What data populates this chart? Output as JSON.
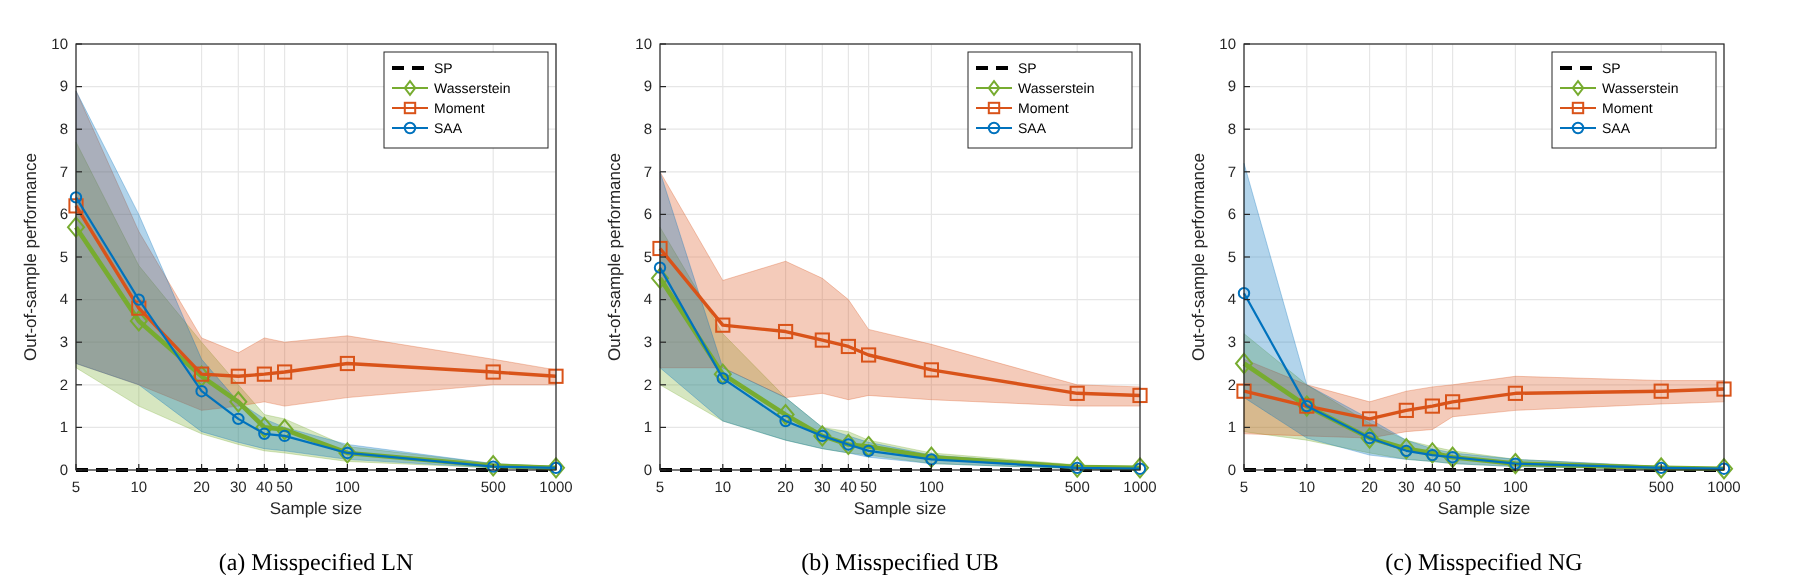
{
  "chart_data": [
    {
      "type": "line",
      "title": "(a) Misspecified LN",
      "xlabel": "Sample size",
      "ylabel": "Out-of-sample performance",
      "log": "x",
      "grid": true,
      "legend": "top right",
      "xlim": [
        5,
        1000
      ],
      "xticks": [
        5,
        10,
        20,
        30,
        40,
        50,
        100,
        500,
        1000
      ],
      "ylim": [
        0,
        10
      ],
      "yticks": [
        0,
        1,
        2,
        3,
        4,
        5,
        6,
        7,
        8,
        9,
        10
      ],
      "x": [
        5,
        10,
        20,
        30,
        40,
        50,
        100,
        500,
        1000
      ],
      "series": [
        {
          "name": "SP",
          "color": "#000000",
          "marker": "none",
          "line_style": "dashed",
          "values": [
            0,
            0,
            0,
            0,
            0,
            0,
            0,
            0,
            0
          ]
        },
        {
          "name": "Wasserstein",
          "color": "#77ac30",
          "marker": "diamond",
          "values": [
            5.7,
            3.5,
            2.2,
            1.6,
            1.0,
            0.95,
            0.4,
            0.1,
            0.05
          ],
          "lower": [
            2.4,
            1.5,
            0.85,
            0.6,
            0.45,
            0.4,
            0.2,
            0.05,
            0.02
          ],
          "upper": [
            7.7,
            4.8,
            3.0,
            2.0,
            1.3,
            1.2,
            0.55,
            0.15,
            0.08
          ]
        },
        {
          "name": "Moment",
          "color": "#d95319",
          "marker": "square",
          "values": [
            6.2,
            3.8,
            2.25,
            2.2,
            2.25,
            2.3,
            2.5,
            2.3,
            2.2
          ],
          "lower": [
            2.5,
            2.0,
            1.4,
            1.5,
            1.6,
            1.5,
            1.7,
            2.0,
            2.0
          ],
          "upper": [
            8.9,
            5.6,
            3.1,
            2.75,
            3.1,
            3.0,
            3.15,
            2.6,
            2.35
          ]
        },
        {
          "name": "SAA",
          "color": "#0072bd",
          "marker": "circle",
          "values": [
            6.4,
            4.0,
            1.85,
            1.2,
            0.85,
            0.8,
            0.4,
            0.08,
            0.05
          ],
          "lower": [
            2.5,
            2.0,
            0.9,
            0.65,
            0.5,
            0.45,
            0.25,
            0.05,
            0.03
          ],
          "upper": [
            8.9,
            6.0,
            2.6,
            1.6,
            1.2,
            1.0,
            0.6,
            0.15,
            0.08
          ]
        }
      ]
    },
    {
      "type": "line",
      "title": "(b) Misspecified UB",
      "xlabel": "Sample size",
      "ylabel": "Out-of-sample performance",
      "log": "x",
      "grid": true,
      "legend": "top right",
      "xlim": [
        5,
        1000
      ],
      "xticks": [
        5,
        10,
        20,
        30,
        40,
        50,
        100,
        500,
        1000
      ],
      "ylim": [
        0,
        10
      ],
      "yticks": [
        0,
        1,
        2,
        3,
        4,
        5,
        6,
        7,
        8,
        9,
        10
      ],
      "x": [
        5,
        10,
        20,
        30,
        40,
        50,
        100,
        500,
        1000
      ],
      "series": [
        {
          "name": "SP",
          "color": "#000000",
          "marker": "none",
          "line_style": "dashed",
          "values": [
            0,
            0,
            0,
            0,
            0,
            0,
            0,
            0,
            0
          ]
        },
        {
          "name": "Wasserstein",
          "color": "#77ac30",
          "marker": "diamond",
          "values": [
            4.5,
            2.25,
            1.3,
            0.8,
            0.6,
            0.55,
            0.3,
            0.07,
            0.05
          ],
          "lower": [
            2.0,
            1.15,
            0.7,
            0.5,
            0.4,
            0.35,
            0.15,
            0.03,
            0.02
          ],
          "upper": [
            5.7,
            3.2,
            1.7,
            1.0,
            0.9,
            0.7,
            0.4,
            0.12,
            0.08
          ]
        },
        {
          "name": "Moment",
          "color": "#d95319",
          "marker": "square",
          "values": [
            5.2,
            3.4,
            3.25,
            3.05,
            2.9,
            2.7,
            2.35,
            1.8,
            1.75
          ],
          "lower": [
            2.4,
            2.4,
            1.7,
            1.8,
            1.65,
            1.75,
            1.65,
            1.5,
            1.5
          ],
          "upper": [
            7.0,
            4.45,
            4.9,
            4.5,
            4.0,
            3.3,
            2.95,
            2.0,
            1.95
          ]
        },
        {
          "name": "SAA",
          "color": "#0072bd",
          "marker": "circle",
          "values": [
            4.75,
            2.15,
            1.15,
            0.8,
            0.6,
            0.45,
            0.25,
            0.05,
            0.03
          ],
          "lower": [
            2.4,
            1.15,
            0.7,
            0.5,
            0.4,
            0.3,
            0.15,
            0.03,
            0.02
          ],
          "upper": [
            7.0,
            2.4,
            1.7,
            1.0,
            0.8,
            0.65,
            0.35,
            0.1,
            0.06
          ]
        }
      ]
    },
    {
      "type": "line",
      "title": "(c) Misspecified NG",
      "xlabel": "Sample size",
      "ylabel": "Out-of-sample performance",
      "log": "x",
      "grid": true,
      "legend": "top right",
      "xlim": [
        5,
        1000
      ],
      "xticks": [
        5,
        10,
        20,
        30,
        40,
        50,
        100,
        500,
        1000
      ],
      "ylim": [
        0,
        10
      ],
      "yticks": [
        0,
        1,
        2,
        3,
        4,
        5,
        6,
        7,
        8,
        9,
        10
      ],
      "x": [
        5,
        10,
        20,
        30,
        40,
        50,
        100,
        500,
        1000
      ],
      "series": [
        {
          "name": "SP",
          "color": "#000000",
          "marker": "none",
          "line_style": "dashed",
          "values": [
            0,
            0,
            0,
            0,
            0,
            0,
            0,
            0,
            0
          ]
        },
        {
          "name": "Wasserstein",
          "color": "#77ac30",
          "marker": "diamond",
          "values": [
            2.5,
            1.5,
            0.75,
            0.5,
            0.4,
            0.3,
            0.15,
            0.05,
            0.03
          ],
          "lower": [
            0.9,
            0.7,
            0.4,
            0.25,
            0.2,
            0.15,
            0.08,
            0.02,
            0.01
          ],
          "upper": [
            3.2,
            2.0,
            1.1,
            0.7,
            0.55,
            0.45,
            0.25,
            0.08,
            0.05
          ]
        },
        {
          "name": "Moment",
          "color": "#d95319",
          "marker": "square",
          "values": [
            1.85,
            1.5,
            1.2,
            1.4,
            1.5,
            1.6,
            1.8,
            1.85,
            1.9
          ],
          "lower": [
            0.85,
            0.8,
            0.75,
            0.9,
            0.95,
            1.25,
            1.4,
            1.55,
            1.6
          ],
          "upper": [
            2.6,
            2.0,
            1.6,
            1.85,
            1.95,
            2.0,
            2.2,
            2.1,
            2.1
          ]
        },
        {
          "name": "SAA",
          "color": "#0072bd",
          "marker": "circle",
          "values": [
            4.15,
            1.5,
            0.75,
            0.45,
            0.35,
            0.3,
            0.15,
            0.05,
            0.03
          ],
          "lower": [
            1.7,
            0.75,
            0.35,
            0.25,
            0.2,
            0.15,
            0.08,
            0.02,
            0.01
          ],
          "upper": [
            7.2,
            2.0,
            1.2,
            0.7,
            0.5,
            0.4,
            0.25,
            0.08,
            0.05
          ]
        }
      ]
    }
  ]
}
